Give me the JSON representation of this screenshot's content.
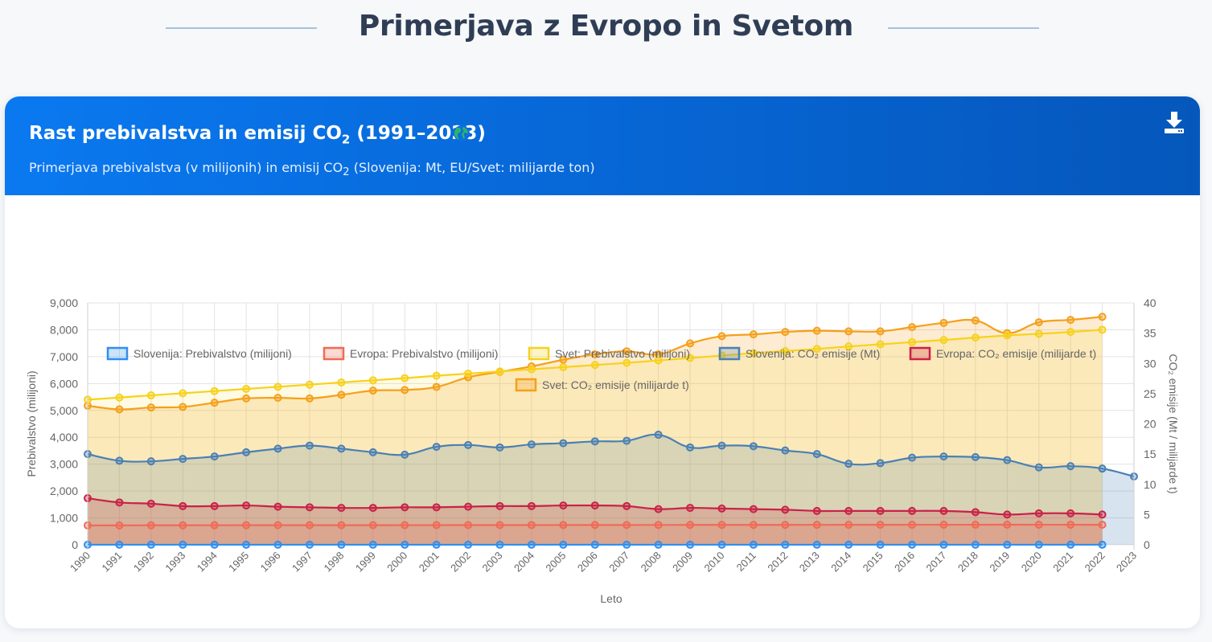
{
  "page": {
    "title": "Primerjava z Evropo in Svetom"
  },
  "card": {
    "title_main": "Rast prebivalstva in emisij CO",
    "title_sub": "2",
    "title_tail": " (1991–2023)",
    "subtitle_a": "Primerjava prebivalstva (v milijonih) in emisij CO",
    "subtitle_sub": "2",
    "subtitle_b": " (Slovenija: Mt, EU/Svet: milijarde ton)",
    "globe_icon": "globe-icon",
    "download_icon": "download-icon"
  },
  "colors": {
    "header_start": "#0a79f0",
    "header_end": "#0557bb",
    "page_bg": "#f6f8fa"
  },
  "chart_data": {
    "type": "line",
    "x": [
      1990,
      1991,
      1992,
      1993,
      1994,
      1995,
      1996,
      1997,
      1998,
      1999,
      2000,
      2001,
      2002,
      2003,
      2004,
      2005,
      2006,
      2007,
      2008,
      2009,
      2010,
      2011,
      2012,
      2013,
      2014,
      2015,
      2016,
      2017,
      2018,
      2019,
      2020,
      2021,
      2022,
      2023
    ],
    "xlabel": "Leto",
    "ylabel": "Prebivalstvo (milijoni)",
    "y2label": "CO₂ emisije (Mt / milijarde t)",
    "ylim": [
      0,
      9000
    ],
    "y2lim": [
      0,
      40
    ],
    "yticks": [
      0,
      1000,
      2000,
      3000,
      4000,
      5000,
      6000,
      7000,
      8000,
      9000
    ],
    "ytick_labels": [
      "0",
      "1,000",
      "2,000",
      "3,000",
      "4,000",
      "5,000",
      "6,000",
      "7,000",
      "8,000",
      "9,000"
    ],
    "y2ticks": [
      0,
      5,
      10,
      15,
      20,
      25,
      30,
      35,
      40
    ],
    "ytick_labels2": [
      "0",
      "5",
      "10",
      "15",
      "20",
      "25",
      "30",
      "35",
      "40"
    ],
    "grid": true,
    "legend_position": "top",
    "series": [
      {
        "name": "Slovenija: Prebivalstvo (milijoni)",
        "axis": "left",
        "color": "#2f8ff0",
        "fill": "rgba(47,143,240,0.12)",
        "values": [
          2.0,
          2.0,
          2.0,
          2.0,
          2.0,
          2.0,
          2.0,
          2.0,
          2.0,
          2.0,
          2.0,
          2.0,
          2.0,
          2.0,
          2.0,
          2.0,
          2.0,
          2.0,
          2.0,
          2.0,
          2.05,
          2.05,
          2.06,
          2.06,
          2.06,
          2.06,
          2.06,
          2.07,
          2.07,
          2.09,
          2.1,
          2.11,
          2.11,
          null
        ]
      },
      {
        "name": "Evropa: Prebivalstvo (milijoni)",
        "axis": "left",
        "color": "#f16a55",
        "fill": "rgba(241,106,85,0.15)",
        "values": [
          720,
          722,
          724,
          726,
          727,
          728,
          729,
          729,
          729,
          729,
          730,
          731,
          732,
          733,
          734,
          735,
          736,
          737,
          738,
          739,
          740,
          740,
          741,
          742,
          743,
          744,
          745,
          746,
          746,
          747,
          746,
          745,
          744,
          null
        ]
      },
      {
        "name": "Svet: Prebivalstvo (milijoni)",
        "axis": "left",
        "color": "#f7d21a",
        "fill": "rgba(247,210,26,0.12)",
        "values": [
          5400,
          5480,
          5560,
          5640,
          5720,
          5800,
          5880,
          5960,
          6040,
          6120,
          6200,
          6290,
          6370,
          6450,
          6530,
          6610,
          6690,
          6770,
          6860,
          6950,
          7040,
          7130,
          7210,
          7290,
          7380,
          7460,
          7540,
          7620,
          7710,
          7790,
          7850,
          7920,
          8000,
          null
        ]
      },
      {
        "name": "Slovenija: CO₂ emisije (Mt)",
        "axis": "right",
        "color": "#4a80b4",
        "fill": "rgba(74,128,180,0.22)",
        "values": [
          15.0,
          13.9,
          13.8,
          14.2,
          14.6,
          15.3,
          15.9,
          16.4,
          15.9,
          15.3,
          14.9,
          16.2,
          16.5,
          16.1,
          16.6,
          16.8,
          17.1,
          17.2,
          18.2,
          16.1,
          16.4,
          16.3,
          15.6,
          15.0,
          13.4,
          13.5,
          14.4,
          14.6,
          14.5,
          14.0,
          12.8,
          13.0,
          12.6,
          11.3
        ]
      },
      {
        "name": "Evropa: CO₂ emisije (milijarde t)",
        "axis": "right",
        "color": "#c92248",
        "fill": "rgba(201,34,72,0.22)",
        "values": [
          7.7,
          7.0,
          6.8,
          6.4,
          6.4,
          6.5,
          6.3,
          6.2,
          6.1,
          6.1,
          6.2,
          6.2,
          6.3,
          6.4,
          6.4,
          6.5,
          6.5,
          6.4,
          5.9,
          6.1,
          6.0,
          5.9,
          5.8,
          5.6,
          5.6,
          5.6,
          5.6,
          5.6,
          5.4,
          5.0,
          5.2,
          5.2,
          5.0,
          null
        ]
      },
      {
        "name": "Svet: CO₂ emisije (milijarde t)",
        "axis": "right",
        "color": "#f5a01a",
        "fill": "rgba(245,160,26,0.20)",
        "values": [
          23.0,
          22.4,
          22.7,
          22.8,
          23.5,
          24.2,
          24.3,
          24.2,
          24.8,
          25.5,
          25.6,
          26.1,
          27.7,
          28.6,
          29.5,
          30.6,
          31.5,
          32.0,
          31.5,
          33.3,
          34.5,
          34.8,
          35.2,
          35.4,
          35.3,
          35.3,
          36.0,
          36.7,
          37.1,
          35.0,
          36.8,
          37.2,
          37.7,
          null
        ]
      }
    ]
  }
}
